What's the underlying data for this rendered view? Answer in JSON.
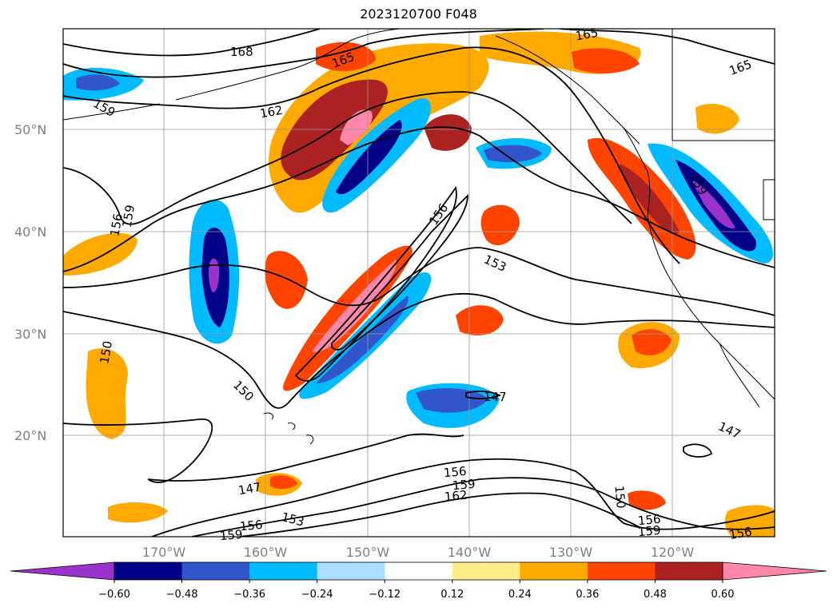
{
  "title": "2023120700 F048",
  "map": {
    "lat_labels": [
      "50°N",
      "40°N",
      "30°N",
      "20°N"
    ],
    "lon_labels": [
      "170°W",
      "160°W",
      "150°W",
      "140°W",
      "130°W",
      "120°W"
    ],
    "contour_labels": [
      "168",
      "165",
      "165",
      "165",
      "162",
      "159",
      "159",
      "159",
      "156",
      "156",
      "153",
      "150",
      "150",
      "150",
      "147",
      "147",
      "147",
      "156",
      "159",
      "162",
      "153",
      "156",
      "159",
      "156",
      "159",
      "156"
    ]
  },
  "colorbar": {
    "colors": [
      "#9933cc",
      "#000088",
      "#3355cc",
      "#00bbff",
      "#aaddff",
      "#ffffff",
      "#ffee88",
      "#ffaa00",
      "#ff4400",
      "#aa2222",
      "#ff88aa"
    ],
    "ticks": [
      "−0.60",
      "−0.48",
      "−0.36",
      "−0.24",
      "−0.12",
      "0.12",
      "0.24",
      "0.36",
      "0.48",
      "0.60"
    ]
  }
}
